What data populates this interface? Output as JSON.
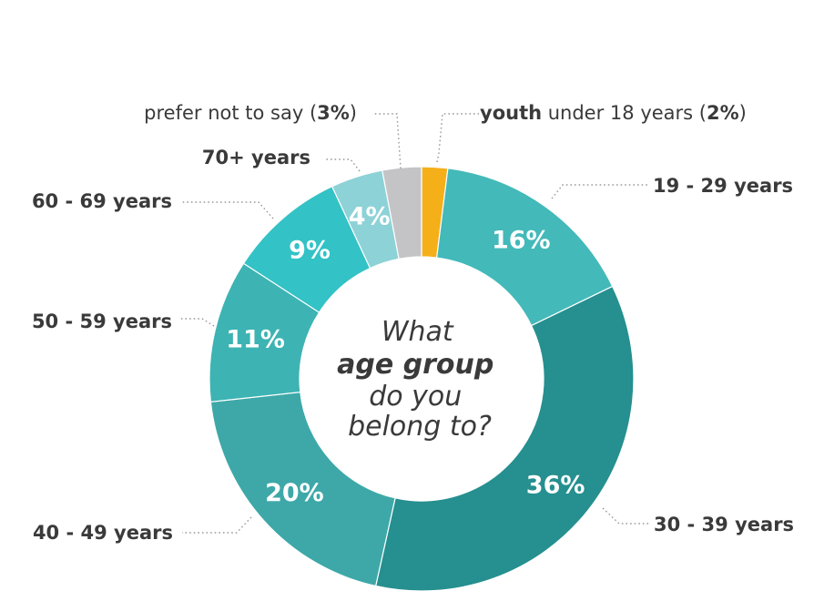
{
  "chart_data": {
    "type": "pie",
    "style": "donut",
    "center_text": {
      "line1": "What",
      "line2": "age group",
      "line3": "do you",
      "line4": "belong to?"
    },
    "slices": [
      {
        "bold": "youth",
        "rest": " under 18 years (",
        "pct_text": "2%",
        "close": ")",
        "value": 2,
        "label_inside": "",
        "color": "#F5AF19"
      },
      {
        "bold": "19 - 29 years",
        "rest": "",
        "pct_text": "",
        "close": "",
        "value": 16,
        "label_inside": "16%",
        "color": "#43B9B9"
      },
      {
        "bold": "30 - 39 years",
        "rest": "",
        "pct_text": "",
        "close": "",
        "value": 36,
        "label_inside": "36%",
        "color": "#268F8F"
      },
      {
        "bold": "40 - 49 years",
        "rest": "",
        "pct_text": "",
        "close": "",
        "value": 20,
        "label_inside": "20%",
        "color": "#3EA8A8"
      },
      {
        "bold": "50 - 59 years",
        "rest": "",
        "pct_text": "",
        "close": "",
        "value": 11,
        "label_inside": "11%",
        "color": "#3DB3B3"
      },
      {
        "bold": "60 - 69 years",
        "rest": "",
        "pct_text": "",
        "close": "",
        "value": 9,
        "label_inside": "9%",
        "color": "#33C2C6"
      },
      {
        "bold": "70+ years",
        "rest": "",
        "pct_text": "",
        "close": "",
        "value": 4,
        "label_inside": "4%",
        "color": "#8DD2D6"
      },
      {
        "bold": "",
        "rest": "prefer not to say (",
        "pct_text": "3%",
        "close": ")",
        "value": 3,
        "label_inside": "",
        "color": "#C4C4C6"
      }
    ]
  }
}
